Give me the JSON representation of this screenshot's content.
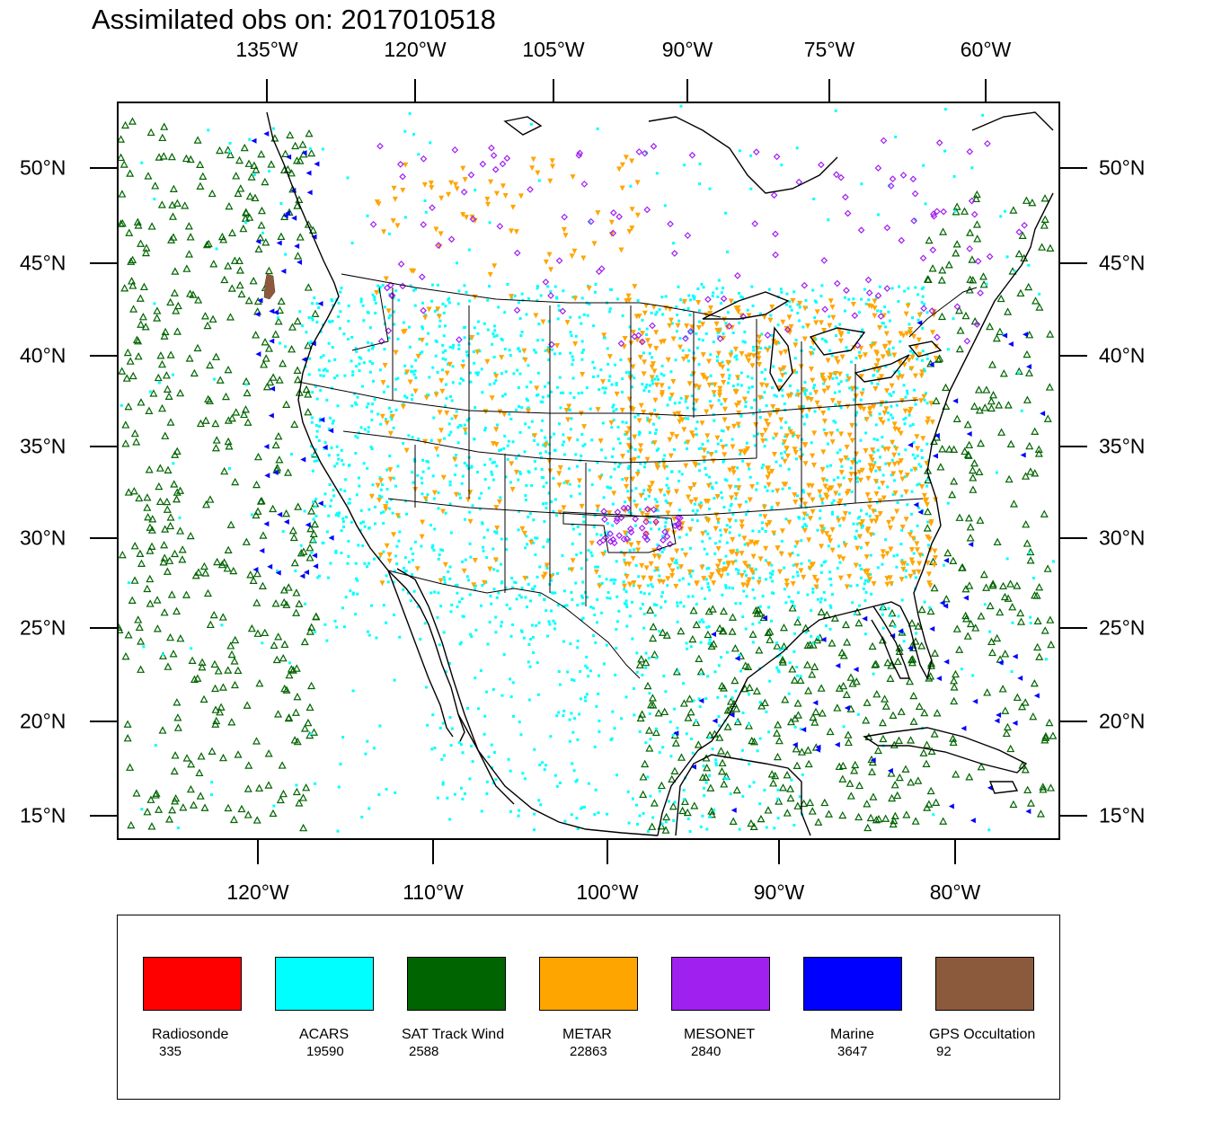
{
  "title": "Assimilated obs on: 2017010518",
  "top_axis_labels": [
    "135°W",
    "120°W",
    "105°W",
    "90°W",
    "75°W",
    "60°W"
  ],
  "bottom_axis_labels": [
    "120°W",
    "110°W",
    "100°W",
    "90°W",
    "80°W"
  ],
  "lat_labels": [
    "50°N",
    "45°N",
    "40°N",
    "35°N",
    "30°N",
    "25°N",
    "20°N",
    "15°N"
  ],
  "legend": [
    {
      "name": "Radiosonde",
      "count": "335",
      "color": "#ff0000"
    },
    {
      "name": "ACARS",
      "count": "19590",
      "color": "#00ffff"
    },
    {
      "name": "SAT Track Wind",
      "count": "2588",
      "color": "#006400"
    },
    {
      "name": "METAR",
      "count": "22863",
      "color": "#ffa500"
    },
    {
      "name": "MESONET",
      "count": "2840",
      "color": "#a020f0"
    },
    {
      "name": "Marine",
      "count": "3647",
      "color": "#0000ff"
    },
    {
      "name": "GPS Occultation",
      "count": "92",
      "color": "#8b5a3c"
    }
  ],
  "map_colors": {
    "coastline": "#000000",
    "acars": "#00ffff",
    "sat": "#006400",
    "metar": "#ffa500",
    "mesonet": "#a020f0",
    "marine": "#0000ff",
    "gps": "#8b5a3c"
  }
}
